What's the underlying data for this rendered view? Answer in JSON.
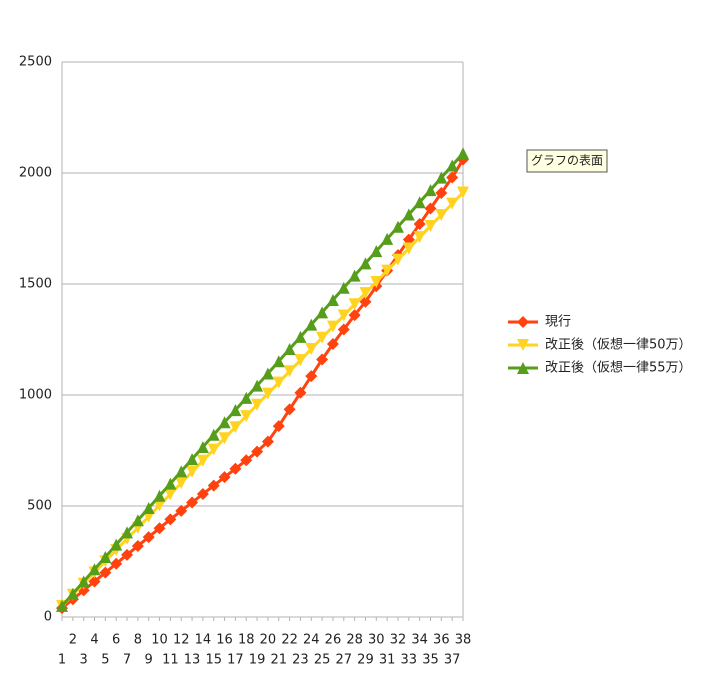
{
  "chart_data": {
    "type": "line",
    "categories": [
      "1",
      "2",
      "3",
      "4",
      "5",
      "6",
      "7",
      "8",
      "9",
      "10",
      "11",
      "12",
      "13",
      "14",
      "15",
      "16",
      "17",
      "18",
      "19",
      "20",
      "21",
      "22",
      "23",
      "24",
      "25",
      "26",
      "27",
      "28",
      "29",
      "30",
      "31",
      "32",
      "33",
      "34",
      "35",
      "36",
      "37",
      "38"
    ],
    "series": [
      {
        "name": "現行",
        "color": "#ff420e",
        "marker": "diamond",
        "values": [
          40,
          80,
          120,
          160,
          200,
          240,
          280,
          320,
          360,
          400,
          440,
          478,
          516,
          554,
          592,
          630,
          668,
          706,
          745,
          790,
          860,
          935,
          1010,
          1085,
          1160,
          1230,
          1295,
          1360,
          1420,
          1490,
          1560,
          1630,
          1700,
          1770,
          1840,
          1910,
          1980,
          2060
        ]
      },
      {
        "name": "改正後（仮想一律50万）",
        "color": "#ffd320",
        "marker": "triangle-down",
        "values": [
          50,
          100,
          150,
          201,
          251,
          302,
          352,
          402,
          452,
          503,
          553,
          603,
          654,
          704,
          754,
          805,
          855,
          905,
          956,
          1006,
          1056,
          1107,
          1157,
          1207,
          1258,
          1308,
          1358,
          1409,
          1459,
          1509,
          1560,
          1610,
          1660,
          1711,
          1761,
          1811,
          1862,
          1912
        ]
      },
      {
        "name": "改正後（仮想一律55万）",
        "color": "#579d1c",
        "marker": "triangle-up",
        "values": [
          50,
          105,
          160,
          215,
          270,
          326,
          381,
          436,
          491,
          546,
          601,
          656,
          711,
          766,
          821,
          877,
          932,
          987,
          1042,
          1097,
          1152,
          1207,
          1262,
          1317,
          1372,
          1428,
          1483,
          1538,
          1593,
          1648,
          1703,
          1758,
          1813,
          1868,
          1923,
          1979,
          2034,
          2089
        ]
      }
    ],
    "ylim": [
      0,
      2500
    ],
    "yticks": [
      0,
      500,
      1000,
      1500,
      2000,
      2500
    ],
    "grid": true,
    "legend": "right",
    "tooltip": "グラフの表面"
  }
}
